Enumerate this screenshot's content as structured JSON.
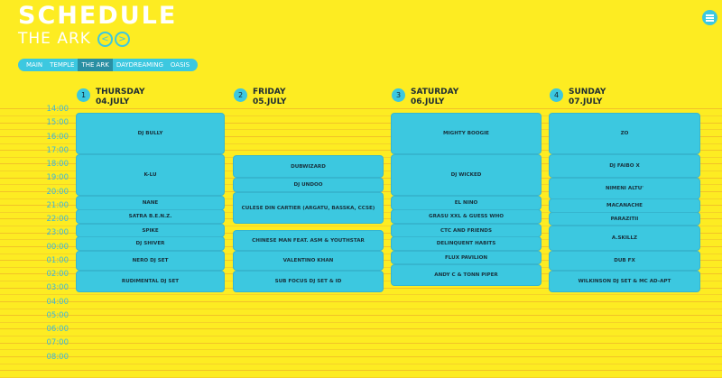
{
  "header": {
    "title": "SCHEDULE",
    "subtitle": "THE ARK",
    "prev": "<",
    "next": ">"
  },
  "tabs": [
    "MAIN",
    "TEMPLE",
    "THE ARK",
    "DAYDREAMING",
    "OASIS"
  ],
  "times": [
    "14:00",
    "15:00",
    "16:00",
    "17:00",
    "18:00",
    "19:00",
    "20:00",
    "21:00",
    "22:00",
    "23:00",
    "00:00",
    "01:00",
    "02:00",
    "03:00",
    "04:00",
    "05:00",
    "06:00",
    "07:00",
    "08:00"
  ],
  "days": [
    {
      "number": "1",
      "name": "THURSDAY",
      "date": "04.JULY",
      "events": [
        "DJ BULLY",
        "K-LU",
        "NANE",
        "SATRA B.E.N.Z.",
        "SPIKE",
        "DJ SHIVER",
        "NERO DJ SET",
        "RUDIMENTAL DJ SET"
      ]
    },
    {
      "number": "2",
      "name": "FRIDAY",
      "date": "05.JULY",
      "events": [
        "DUBWIZARD",
        "DJ UNDOO",
        "CULESE DIN CARTIER (ARGATU, BASSKA, CCSE)",
        "CHINESE MAN FEAT. ASM & YOUTHSTAR",
        "VALENTINO KHAN",
        "SUB FOCUS DJ SET & ID"
      ]
    },
    {
      "number": "3",
      "name": "SATURDAY",
      "date": "06.JULY",
      "events": [
        "MIGHTY BOOGIE",
        "DJ WICKED",
        "EL NINO",
        "GRASU XXL & GUESS WHO",
        "CTC AND FRIENDS",
        "DELINQUENT HABITS",
        "FLUX PAVILION",
        "ANDY C & TONN PIPER"
      ]
    },
    {
      "number": "4",
      "name": "SUNDAY",
      "date": "07.JULY",
      "events": [
        "ZO",
        "DJ FAIBO X",
        "NIMENI ALTU'",
        "MACANACHE",
        "PARAZITII",
        "A.SKILLZ",
        "DUB FX",
        "WILKINSON DJ SET & MC AD-APT"
      ]
    }
  ]
}
